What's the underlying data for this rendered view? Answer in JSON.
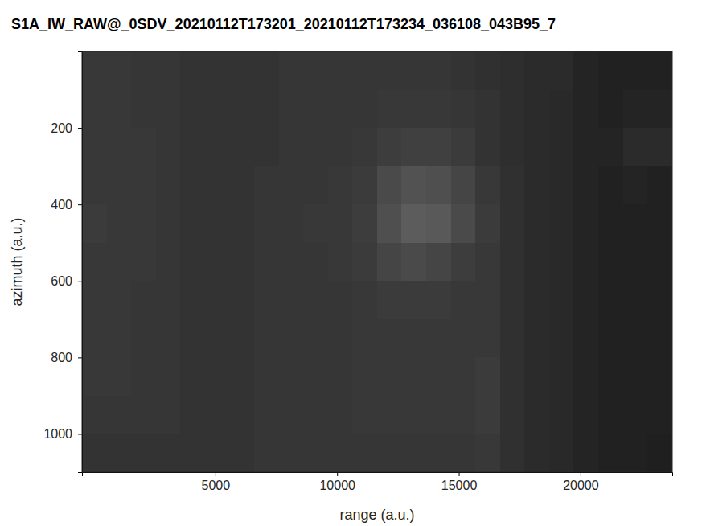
{
  "chart_data": {
    "type": "heatmap",
    "title": "S1A_IW_RAW@_0SDV_20210112T173201_20210112T173234_036108_043B95_7",
    "x_label": "range (a.u.)",
    "y_label": "azimuth (a.u.)",
    "xlim": [
      -480,
      23770
    ],
    "ylim": [
      0,
      1100
    ],
    "xticks": [
      5000,
      10000,
      15000,
      20000
    ],
    "yticks": [
      200,
      400,
      600,
      800,
      1000
    ],
    "zlim": [
      0,
      100
    ],
    "x": [
      25,
      1035,
      2045,
      3055,
      4065,
      5075,
      6085,
      7095,
      8105,
      9115,
      10125,
      11135,
      12145,
      13155,
      14165,
      15175,
      16185,
      17195,
      18205,
      19215,
      20225,
      21235,
      22245,
      23255
    ],
    "y": [
      50,
      150,
      250,
      350,
      450,
      550,
      650,
      750,
      850,
      950,
      1050
    ],
    "values": [
      [
        22,
        22,
        21,
        21,
        20,
        20,
        20,
        20,
        21,
        21,
        21,
        21,
        21,
        21,
        21,
        20,
        19,
        18,
        17,
        17,
        14,
        13,
        13,
        13
      ],
      [
        22,
        22,
        21,
        21,
        20,
        20,
        20,
        20,
        21,
        21,
        21,
        21,
        22,
        22,
        22,
        21,
        20,
        18,
        17,
        16,
        14,
        13,
        14,
        14
      ],
      [
        22,
        22,
        22,
        21,
        20,
        20,
        20,
        20,
        21,
        21,
        21,
        22,
        24,
        25,
        25,
        23,
        20,
        18,
        17,
        16,
        14,
        14,
        17,
        17
      ],
      [
        22,
        22,
        22,
        21,
        20,
        20,
        20,
        21,
        21,
        21,
        22,
        23,
        29,
        32,
        31,
        27,
        22,
        19,
        17,
        16,
        14,
        13,
        14,
        13
      ],
      [
        23,
        22,
        22,
        21,
        20,
        20,
        20,
        21,
        21,
        22,
        22,
        24,
        31,
        36,
        35,
        29,
        23,
        19,
        17,
        16,
        14,
        13,
        13,
        13
      ],
      [
        22,
        22,
        22,
        21,
        20,
        20,
        20,
        21,
        21,
        21,
        22,
        23,
        27,
        29,
        27,
        24,
        22,
        19,
        17,
        16,
        14,
        13,
        13,
        13
      ],
      [
        22,
        22,
        21,
        21,
        20,
        20,
        20,
        21,
        21,
        21,
        21,
        22,
        23,
        23,
        23,
        22,
        22,
        19,
        17,
        16,
        14,
        13,
        13,
        13
      ],
      [
        22,
        22,
        21,
        21,
        20,
        20,
        20,
        21,
        21,
        21,
        21,
        22,
        22,
        22,
        22,
        22,
        22,
        19,
        17,
        16,
        14,
        13,
        13,
        13
      ],
      [
        22,
        22,
        21,
        21,
        20,
        20,
        20,
        21,
        21,
        21,
        21,
        22,
        22,
        22,
        22,
        22,
        23,
        19,
        17,
        16,
        14,
        13,
        13,
        13
      ],
      [
        21,
        21,
        21,
        21,
        20,
        20,
        20,
        21,
        21,
        21,
        21,
        22,
        22,
        22,
        22,
        22,
        23,
        19,
        17,
        16,
        14,
        13,
        13,
        13
      ],
      [
        20,
        20,
        20,
        20,
        20,
        20,
        20,
        21,
        21,
        21,
        21,
        21,
        21,
        21,
        21,
        21,
        22,
        19,
        17,
        16,
        14,
        13,
        13,
        12
      ]
    ],
    "grid": false
  }
}
